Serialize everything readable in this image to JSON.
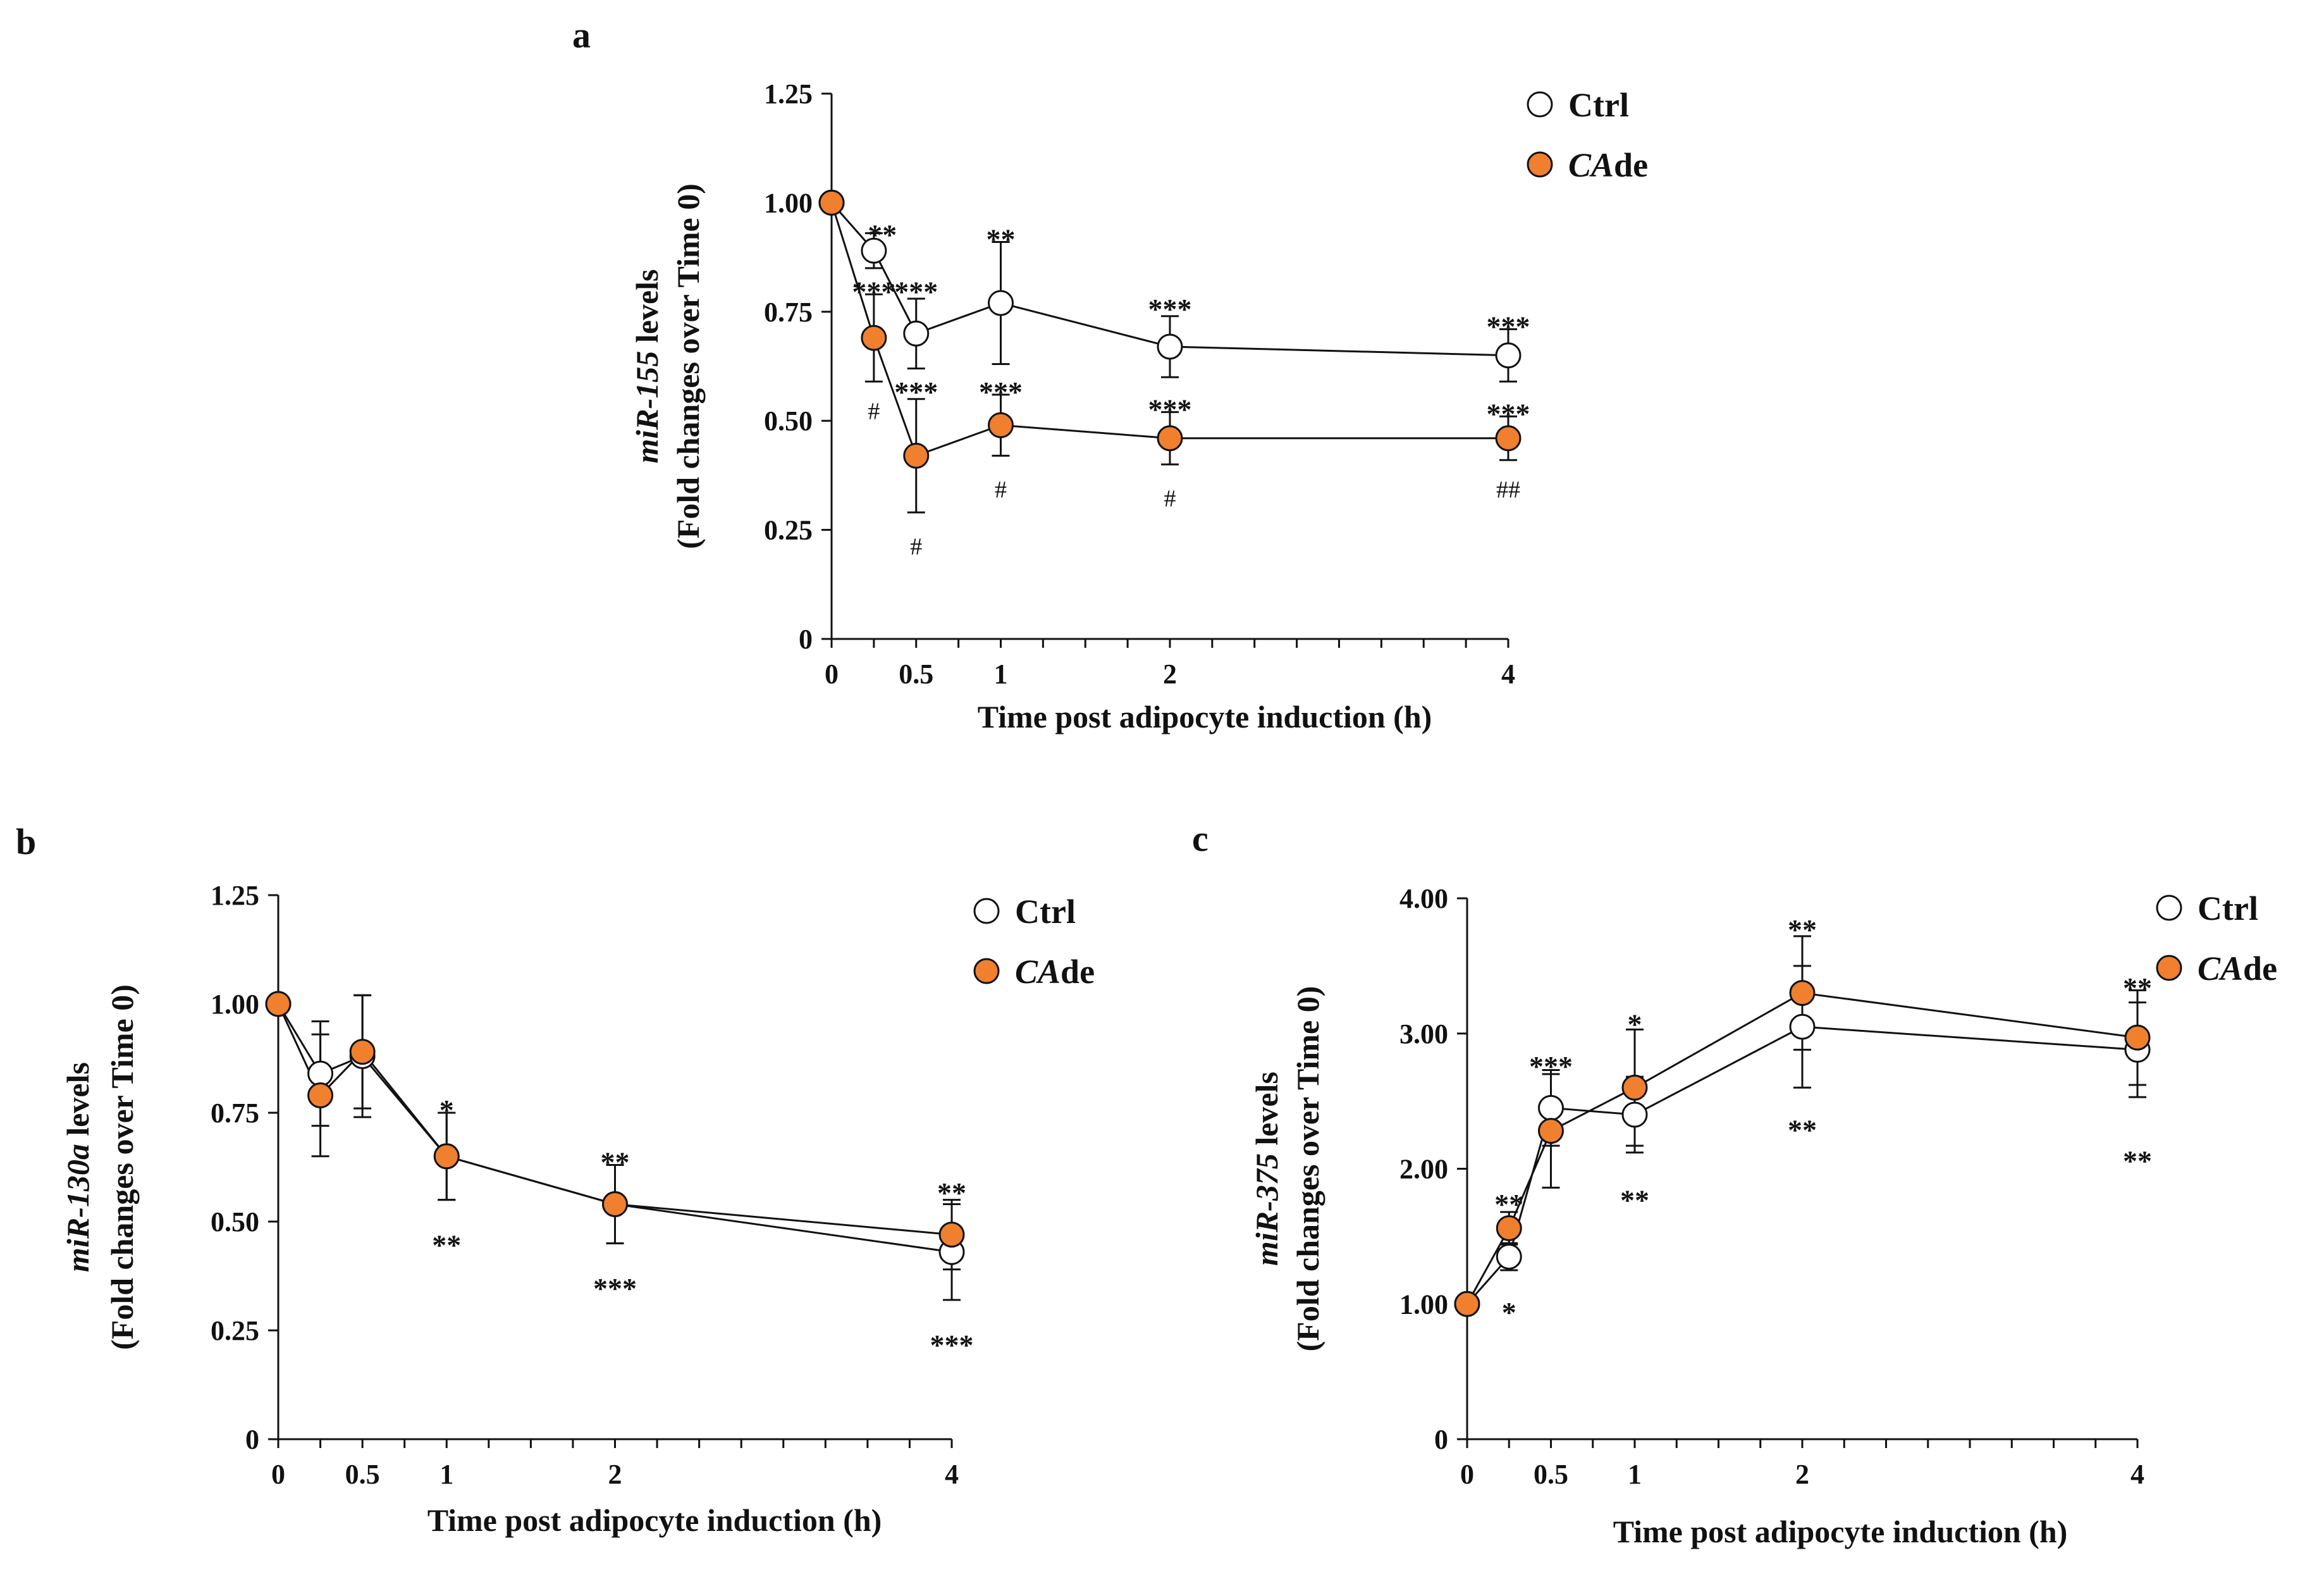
{
  "chart_data": [
    {
      "id": "a",
      "type": "line",
      "panel_label": "a",
      "xlabel": "Time post adipocyte induction (h)",
      "ylabel_italic": "miR-155",
      "ylabel_rest": " levels",
      "ylabel_line2": "(Fold changes over Time 0)",
      "xlim": [
        0,
        4
      ],
      "ylim": [
        0,
        1.25
      ],
      "x_ticks": [
        0,
        0.5,
        1,
        2,
        4
      ],
      "x_tick_labels": [
        "0",
        "0.5",
        "1",
        "2",
        "4"
      ],
      "y_ticks": [
        0,
        0.25,
        0.5,
        0.75,
        1.0,
        1.25
      ],
      "y_tick_labels": [
        "0",
        "0.25",
        "0.50",
        "0.75",
        "1.00",
        "1.25"
      ],
      "legend": [
        {
          "label": "Ctrl",
          "italic": "",
          "rest": "Ctrl",
          "color": "#ffffff"
        },
        {
          "label": "CAde",
          "italic": "CA",
          "rest": "de",
          "color": "#f07f2e"
        }
      ],
      "series": [
        {
          "name": "Ctrl",
          "color": "#ffffff",
          "x": [
            0,
            0.25,
            0.5,
            1,
            2,
            4
          ],
          "y": [
            1.0,
            0.89,
            0.7,
            0.77,
            0.67,
            0.65
          ],
          "err": [
            0,
            0.04,
            0.08,
            0.14,
            0.07,
            0.06
          ]
        },
        {
          "name": "CAde",
          "color": "#f07f2e",
          "x": [
            0,
            0.25,
            0.5,
            1,
            2,
            4
          ],
          "y": [
            1.0,
            0.69,
            0.42,
            0.49,
            0.46,
            0.46
          ],
          "err": [
            0,
            0.1,
            0.13,
            0.07,
            0.06,
            0.05
          ]
        }
      ],
      "annotations": [
        {
          "text": "**",
          "x": 0.25,
          "y": 0.93,
          "dx": 0.05
        },
        {
          "text": "***",
          "x": 0.5,
          "y": 0.8
        },
        {
          "text": "**",
          "x": 1,
          "y": 0.92
        },
        {
          "text": "***",
          "x": 2,
          "y": 0.76
        },
        {
          "text": "***",
          "x": 4,
          "y": 0.72
        },
        {
          "text": "***",
          "x": 0.25,
          "y": 0.8
        },
        {
          "text": "***",
          "x": 0.5,
          "y": 0.57
        },
        {
          "text": "***",
          "x": 1,
          "y": 0.57
        },
        {
          "text": "***",
          "x": 2,
          "y": 0.53
        },
        {
          "text": "***",
          "x": 4,
          "y": 0.52
        },
        {
          "text": "#",
          "x": 0.25,
          "y": 0.53,
          "kind": "hash"
        },
        {
          "text": "#",
          "x": 0.5,
          "y": 0.22,
          "kind": "hash"
        },
        {
          "text": "#",
          "x": 1,
          "y": 0.35,
          "kind": "hash"
        },
        {
          "text": "#",
          "x": 2,
          "y": 0.33,
          "kind": "hash"
        },
        {
          "text": "##",
          "x": 4,
          "y": 0.35,
          "kind": "hash"
        }
      ]
    },
    {
      "id": "b",
      "type": "line",
      "panel_label": "b",
      "xlabel": "Time post adipocyte induction (h)",
      "ylabel_italic": "miR-130a",
      "ylabel_rest": " levels",
      "ylabel_line2": "(Fold changes over Time 0)",
      "xlim": [
        0,
        4
      ],
      "ylim": [
        0,
        1.25
      ],
      "x_ticks": [
        0,
        0.5,
        1,
        2,
        4
      ],
      "x_tick_labels": [
        "0",
        "0.5",
        "1",
        "2",
        "4"
      ],
      "y_ticks": [
        0,
        0.25,
        0.5,
        0.75,
        1.0,
        1.25
      ],
      "y_tick_labels": [
        "0",
        "0.25",
        "0.50",
        "0.75",
        "1.00",
        "1.25"
      ],
      "legend": [
        {
          "label": "Ctrl",
          "italic": "",
          "rest": "Ctrl",
          "color": "#ffffff"
        },
        {
          "label": "CAde",
          "italic": "CA",
          "rest": "de",
          "color": "#f07f2e"
        }
      ],
      "series": [
        {
          "name": "Ctrl",
          "color": "#ffffff",
          "x": [
            0,
            0.25,
            0.5,
            1,
            2,
            4
          ],
          "y": [
            1.0,
            0.84,
            0.88,
            0.65,
            0.54,
            0.43
          ],
          "err": [
            0,
            0.12,
            0.14,
            0.1,
            0.09,
            0.11
          ]
        },
        {
          "name": "CAde",
          "color": "#f07f2e",
          "x": [
            0,
            0.25,
            0.5,
            1,
            2,
            4
          ],
          "y": [
            1.0,
            0.79,
            0.89,
            0.65,
            0.54,
            0.47
          ],
          "err": [
            0,
            0.14,
            0.13,
            0.1,
            0.09,
            0.08
          ]
        }
      ],
      "annotations": [
        {
          "text": "*",
          "x": 1,
          "y": 0.76
        },
        {
          "text": "**",
          "x": 2,
          "y": 0.64
        },
        {
          "text": "**",
          "x": 4,
          "y": 0.57
        },
        {
          "text": "**",
          "x": 1,
          "y": 0.45
        },
        {
          "text": "***",
          "x": 2,
          "y": 0.35
        },
        {
          "text": "***",
          "x": 4,
          "y": 0.22
        }
      ]
    },
    {
      "id": "c",
      "type": "line",
      "panel_label": "c",
      "xlabel": "Time post adipocyte induction (h)",
      "ylabel_italic": "miR-375",
      "ylabel_rest": " levels",
      "ylabel_line2": "(Fold changes over Time 0)",
      "xlim": [
        0,
        4
      ],
      "ylim": [
        0,
        4.0
      ],
      "x_ticks": [
        0,
        0.5,
        1,
        2,
        4
      ],
      "x_tick_labels": [
        "0",
        "0.5",
        "1",
        "2",
        "4"
      ],
      "y_ticks": [
        0,
        1,
        2,
        3,
        4
      ],
      "y_tick_labels": [
        "0",
        "1.00",
        "2.00",
        "3.00",
        "4.00"
      ],
      "legend": [
        {
          "label": "Ctrl",
          "italic": "",
          "rest": "Ctrl",
          "color": "#ffffff"
        },
        {
          "label": "CAde",
          "italic": "CA",
          "rest": "de",
          "color": "#f07f2e"
        }
      ],
      "series": [
        {
          "name": "Ctrl",
          "color": "#ffffff",
          "x": [
            0,
            0.25,
            0.5,
            1,
            2,
            4
          ],
          "y": [
            1.0,
            1.35,
            2.45,
            2.4,
            3.05,
            2.88
          ],
          "err": [
            0,
            0.1,
            0.28,
            0.28,
            0.45,
            0.35
          ]
        },
        {
          "name": "CAde",
          "color": "#f07f2e",
          "x": [
            0,
            0.25,
            0.5,
            1,
            2,
            4
          ],
          "y": [
            1.0,
            1.56,
            2.28,
            2.6,
            3.3,
            2.97
          ],
          "err": [
            0,
            0.12,
            0.42,
            0.43,
            0.42,
            0.35
          ]
        }
      ],
      "annotations": [
        {
          "text": "**",
          "x": 0.25,
          "y": 1.75
        },
        {
          "text": "***",
          "x": 0.5,
          "y": 2.77
        },
        {
          "text": "*",
          "x": 1,
          "y": 3.08
        },
        {
          "text": "**",
          "x": 2,
          "y": 3.78
        },
        {
          "text": "**",
          "x": 4,
          "y": 3.35
        },
        {
          "text": "*",
          "x": 0.25,
          "y": 0.95
        },
        {
          "text": "**",
          "x": 1,
          "y": 1.78
        },
        {
          "text": "**",
          "x": 2,
          "y": 2.3
        },
        {
          "text": "**",
          "x": 4,
          "y": 2.07
        }
      ]
    }
  ]
}
